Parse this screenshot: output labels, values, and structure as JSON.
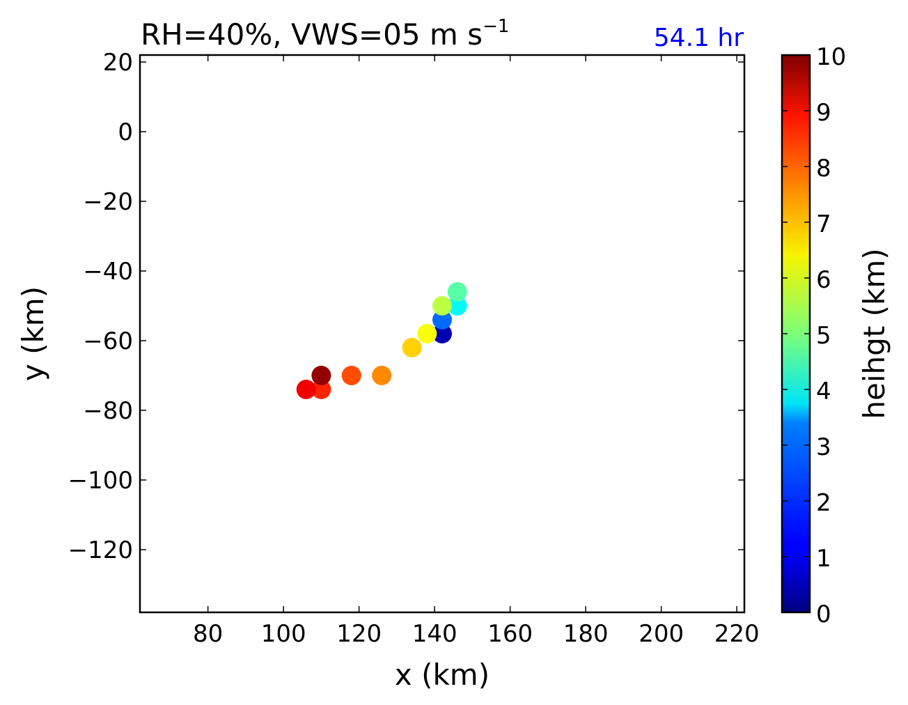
{
  "chart_data": {
    "type": "scatter",
    "title": "RH=40%, VWS=05 m s",
    "title_superscript": "−1",
    "annotation": "54.1 hr",
    "annotation_color": "#0000ff",
    "xlabel": "x (km)",
    "ylabel": "y (km)",
    "xlim": [
      62,
      222
    ],
    "ylim": [
      -138,
      22
    ],
    "xticks": [
      80,
      100,
      120,
      140,
      160,
      180,
      200,
      220
    ],
    "yticks": [
      20,
      0,
      -20,
      -40,
      -60,
      -80,
      -100,
      -120
    ],
    "grid": false,
    "colorbar": {
      "label": "heihgt (km)",
      "colormap": "jet",
      "range": [
        0,
        10
      ],
      "ticks": [
        0,
        1,
        2,
        3,
        4,
        5,
        6,
        7,
        8,
        9,
        10
      ]
    },
    "points": [
      {
        "x": 142,
        "y": -58,
        "height": 0.5
      },
      {
        "x": 142,
        "y": -54,
        "height": 2.3
      },
      {
        "x": 146,
        "y": -50,
        "height": 3.7
      },
      {
        "x": 146,
        "y": -46,
        "height": 4.6
      },
      {
        "x": 142,
        "y": -50,
        "height": 5.6
      },
      {
        "x": 138,
        "y": -58,
        "height": 6.2
      },
      {
        "x": 134,
        "y": -62,
        "height": 6.7
      },
      {
        "x": 126,
        "y": -70,
        "height": 7.4
      },
      {
        "x": 118,
        "y": -70,
        "height": 8.0
      },
      {
        "x": 110,
        "y": -74,
        "height": 8.4
      },
      {
        "x": 106,
        "y": -74,
        "height": 8.9
      },
      {
        "x": 110,
        "y": -70,
        "height": 9.8
      }
    ]
  }
}
